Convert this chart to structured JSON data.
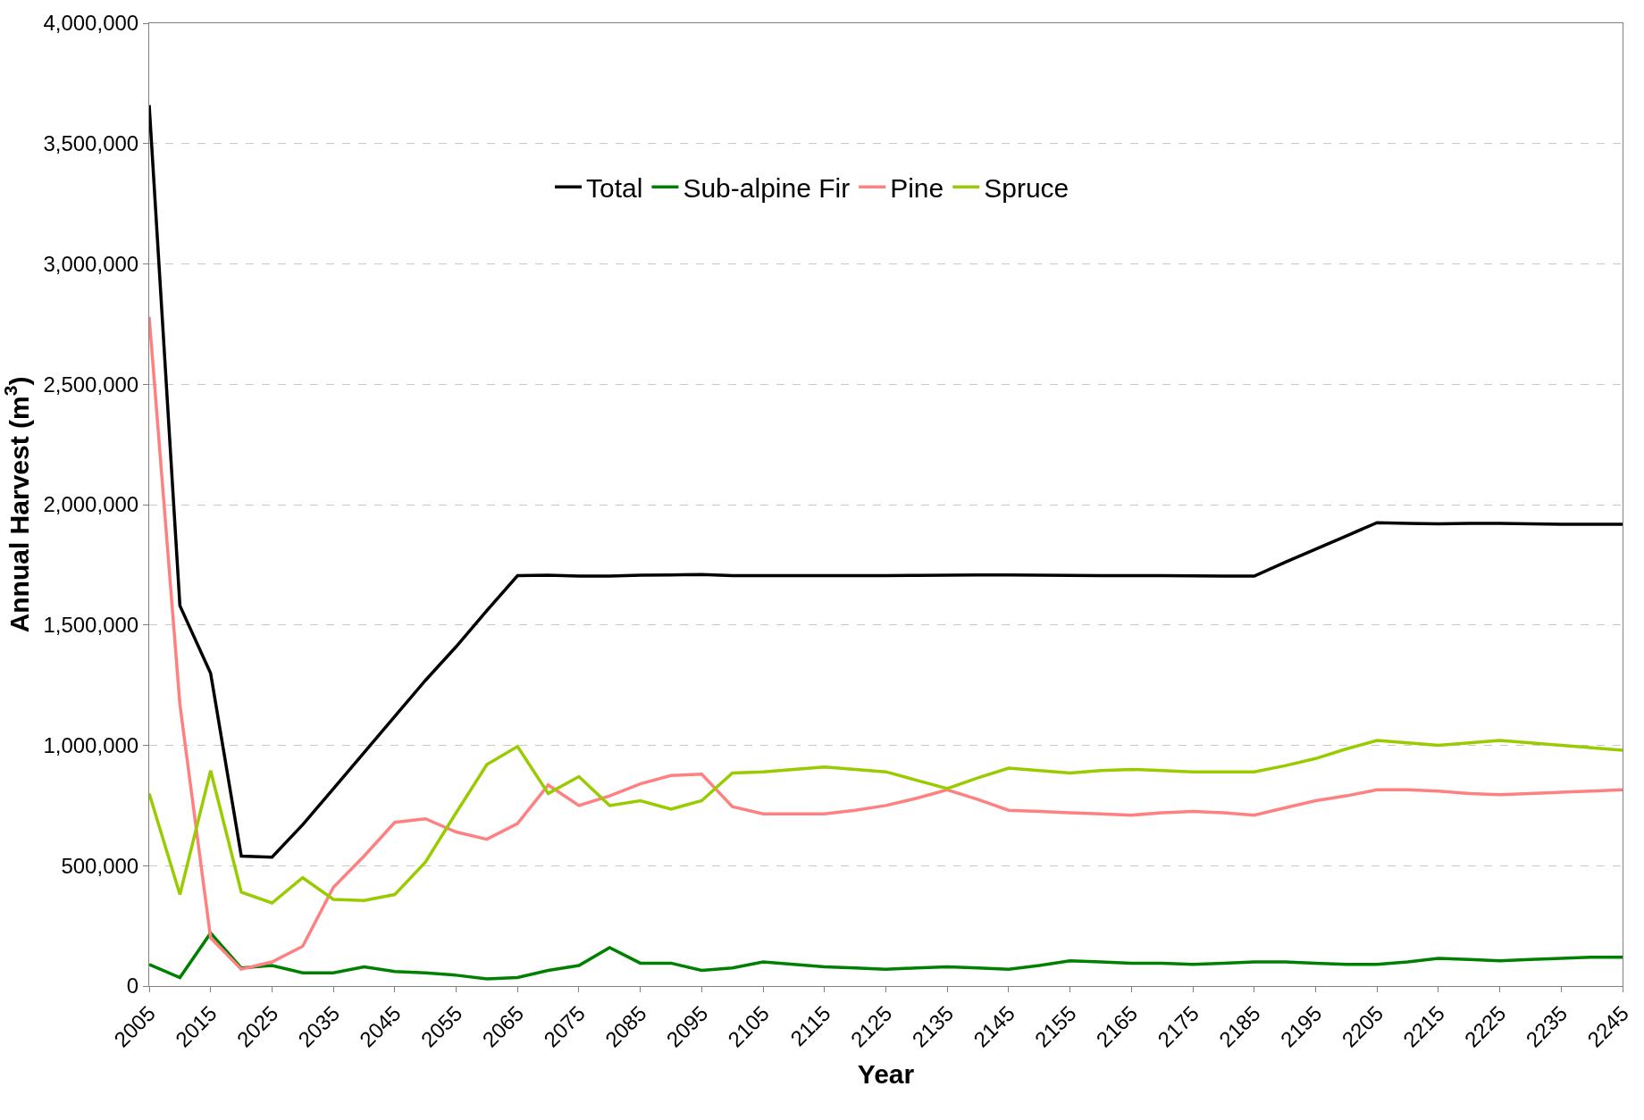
{
  "chart_data": {
    "type": "line",
    "xlabel": "Year",
    "ylabel": "Annual Harvest (m$^{3}$)",
    "x": [
      2005,
      2010,
      2015,
      2020,
      2025,
      2030,
      2035,
      2040,
      2045,
      2050,
      2055,
      2060,
      2065,
      2070,
      2075,
      2080,
      2085,
      2090,
      2095,
      2100,
      2105,
      2110,
      2115,
      2120,
      2125,
      2130,
      2135,
      2140,
      2145,
      2150,
      2155,
      2160,
      2165,
      2170,
      2175,
      2180,
      2185,
      2190,
      2195,
      2200,
      2205,
      2210,
      2215,
      2220,
      2225,
      2230,
      2235,
      2240,
      2245
    ],
    "series": [
      {
        "name": "Total",
        "color": "#000000",
        "values": [
          3660000,
          1580000,
          1300000,
          540000,
          535000,
          670000,
          820000,
          970000,
          1120000,
          1270000,
          1410000,
          1560000,
          1705000,
          1707000,
          1703000,
          1703000,
          1707000,
          1708000,
          1710000,
          1705000,
          1705000,
          1705000,
          1705000,
          1705000,
          1705000,
          1706000,
          1707000,
          1708000,
          1708000,
          1707000,
          1706000,
          1705000,
          1705000,
          1705000,
          1704000,
          1703000,
          1703000,
          1760000,
          1815000,
          1870000,
          1925000,
          1922000,
          1920000,
          1922000,
          1922000,
          1920000,
          1918000,
          1918000,
          1918000
        ]
      },
      {
        "name": "Sub-alpine Fir",
        "color": "#008000",
        "values": [
          90000,
          35000,
          220000,
          75000,
          85000,
          55000,
          55000,
          80000,
          60000,
          55000,
          45000,
          30000,
          35000,
          65000,
          85000,
          160000,
          95000,
          95000,
          65000,
          75000,
          100000,
          90000,
          80000,
          75000,
          70000,
          75000,
          80000,
          75000,
          70000,
          85000,
          105000,
          100000,
          95000,
          95000,
          90000,
          95000,
          100000,
          100000,
          95000,
          90000,
          90000,
          100000,
          115000,
          110000,
          105000,
          110000,
          115000,
          120000,
          120000
        ]
      },
      {
        "name": "Pine",
        "color": "#ff8080",
        "values": [
          2780000,
          1170000,
          200000,
          70000,
          100000,
          165000,
          410000,
          540000,
          680000,
          695000,
          640000,
          610000,
          675000,
          835000,
          750000,
          790000,
          840000,
          875000,
          880000,
          745000,
          715000,
          715000,
          715000,
          730000,
          750000,
          780000,
          815000,
          775000,
          730000,
          725000,
          720000,
          715000,
          710000,
          720000,
          725000,
          720000,
          710000,
          740000,
          770000,
          790000,
          815000,
          815000,
          810000,
          800000,
          795000,
          800000,
          805000,
          810000,
          815000
        ]
      },
      {
        "name": "Spruce",
        "color": "#99cc00",
        "values": [
          800000,
          380000,
          895000,
          390000,
          345000,
          450000,
          360000,
          355000,
          380000,
          515000,
          720000,
          920000,
          995000,
          800000,
          870000,
          750000,
          770000,
          735000,
          770000,
          885000,
          890000,
          900000,
          910000,
          900000,
          890000,
          855000,
          820000,
          865000,
          905000,
          895000,
          885000,
          895000,
          900000,
          895000,
          890000,
          890000,
          890000,
          915000,
          945000,
          985000,
          1020000,
          1010000,
          1000000,
          1010000,
          1020000,
          1010000,
          1000000,
          990000,
          980000
        ]
      }
    ],
    "xlim": [
      2005,
      2245
    ],
    "xticks": [
      2005,
      2015,
      2025,
      2035,
      2045,
      2055,
      2065,
      2075,
      2085,
      2095,
      2105,
      2115,
      2125,
      2135,
      2145,
      2155,
      2165,
      2175,
      2185,
      2195,
      2205,
      2215,
      2225,
      2235,
      2245
    ],
    "ylim": [
      0,
      4000000
    ],
    "yticks": [
      {
        "value": 0,
        "label": "0"
      },
      {
        "value": 500000,
        "label": "500,000"
      },
      {
        "value": 1000000,
        "label": "1,000,000"
      },
      {
        "value": 1500000,
        "label": "1,500,000"
      },
      {
        "value": 2000000,
        "label": "2,000,000"
      },
      {
        "value": 2500000,
        "label": "2,500,000"
      },
      {
        "value": 3000000,
        "label": "3,000,000"
      },
      {
        "value": 3500000,
        "label": "3,500,000"
      },
      {
        "value": 4000000,
        "label": "4,000,000"
      }
    ],
    "grid": "y",
    "legend": "top",
    "marker": "none",
    "line_style": "solid"
  }
}
